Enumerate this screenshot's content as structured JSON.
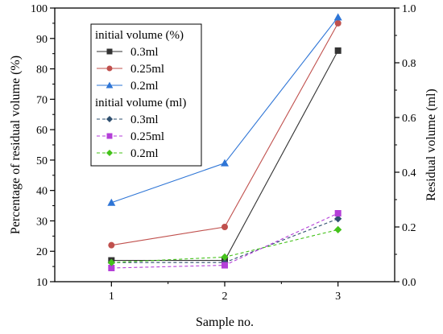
{
  "chart_data": {
    "type": "line",
    "title": "",
    "xlabel": "Sample no.",
    "ylabel_left": "Percentage of residual volume (%)",
    "ylabel_right": "Residual volume (ml)",
    "x": [
      1,
      2,
      3
    ],
    "x_ticks": [
      "1",
      "2",
      "3"
    ],
    "xlim": [
      0.5,
      3.5
    ],
    "ylim_left": [
      10,
      100
    ],
    "ylim_right": [
      0.0,
      1.0
    ],
    "y_ticks_left": [
      "10",
      "20",
      "30",
      "40",
      "50",
      "60",
      "70",
      "80",
      "90",
      "100"
    ],
    "y_ticks_right": [
      "0.0",
      "0.2",
      "0.4",
      "0.6",
      "0.8",
      "1.0"
    ],
    "grid": false,
    "legend_position": "top-left",
    "legend_groups": [
      {
        "title": "initial volume (%)",
        "axis": "left",
        "series": [
          {
            "name": "0.3ml",
            "values": [
              17,
              17,
              86
            ],
            "color": "#333333",
            "marker": "square",
            "dash": "solid"
          },
          {
            "name": "0.25ml",
            "values": [
              22,
              28,
              95
            ],
            "color": "#c0504d",
            "marker": "circle",
            "dash": "solid"
          },
          {
            "name": "0.2ml",
            "values": [
              36,
              49,
              97
            ],
            "color": "#2e75d6",
            "marker": "triangle",
            "dash": "solid"
          }
        ]
      },
      {
        "title": "initial volume (ml)",
        "axis": "right",
        "series": [
          {
            "name": "0.3ml",
            "values": [
              0.07,
              0.07,
              0.23
            ],
            "color": "#2f4f6f",
            "marker": "diamond",
            "dash": "dashed"
          },
          {
            "name": "0.25ml",
            "values": [
              0.05,
              0.06,
              0.25
            ],
            "color": "#b43fd8",
            "marker": "square",
            "dash": "dashed"
          },
          {
            "name": "0.2ml",
            "values": [
              0.07,
              0.09,
              0.19
            ],
            "color": "#44c21a",
            "marker": "diamond",
            "dash": "dashed"
          }
        ]
      }
    ]
  }
}
